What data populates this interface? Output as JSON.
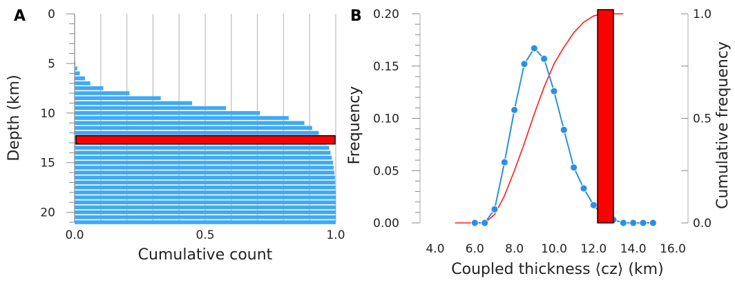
{
  "chart_data": [
    {
      "panel": "A",
      "type": "bar",
      "orientation": "horizontal",
      "title": "",
      "xlabel": "Cumulative count",
      "ylabel": "Depth (km)",
      "xlim": [
        0.0,
        1.0
      ],
      "ylim": [
        0,
        21
      ],
      "y_inverted": true,
      "xticks": [
        "0.0",
        "0.5",
        "1.0"
      ],
      "yticks": [
        "0",
        "5",
        "10",
        "15",
        "20"
      ],
      "grid": "vertical",
      "bar_color": "#3fa9f5",
      "highlight_color": "#ff0000",
      "depth": [
        5.0,
        5.5,
        6.0,
        6.5,
        7.0,
        7.5,
        8.0,
        8.5,
        9.0,
        9.5,
        10.0,
        10.5,
        11.0,
        11.5,
        12.0,
        12.5,
        13.0,
        13.5,
        14.0,
        14.5,
        15.0,
        15.5,
        16.0,
        16.5,
        17.0,
        17.5,
        18.0,
        18.5,
        19.0,
        19.5,
        20.0,
        20.5,
        21.0
      ],
      "values": [
        0.003,
        0.01,
        0.02,
        0.04,
        0.06,
        0.11,
        0.21,
        0.33,
        0.45,
        0.58,
        0.71,
        0.82,
        0.88,
        0.91,
        0.935,
        0.95,
        0.965,
        0.975,
        0.98,
        0.985,
        0.99,
        0.992,
        0.995,
        0.997,
        0.998,
        0.999,
        1.0,
        1.0,
        1.0,
        1.0,
        1.0,
        1.0,
        1.0
      ],
      "highlight": {
        "depth": 12.7,
        "value": 1.0
      }
    },
    {
      "panel": "B",
      "type": "line",
      "title": "",
      "xlabel": "Coupled thickness ⟨cz⟩ (km)",
      "ylabel": "Frequency",
      "y2label": "Cumulative frequency",
      "xlim": [
        4.0,
        16.0
      ],
      "ylim": [
        0.0,
        0.2
      ],
      "y2lim": [
        0.0,
        1.0
      ],
      "xticks": [
        "4.0",
        "6.0",
        "8.0",
        "10.0",
        "12.0",
        "14.0",
        "16.0"
      ],
      "yticks": [
        "0.00",
        "0.05",
        "0.10",
        "0.15",
        "0.20"
      ],
      "y2ticks": [
        "0.0",
        "0.5",
        "1.0"
      ],
      "series": [
        {
          "kind": "frequency",
          "color": "#2a8fe0",
          "x": [
            6.0,
            6.5,
            7.0,
            7.5,
            8.0,
            8.5,
            9.0,
            9.5,
            10.0,
            10.5,
            11.0,
            11.5,
            12.0,
            12.5,
            13.0,
            13.5,
            14.0,
            14.5,
            15.0
          ],
          "y": [
            0.0,
            0.0,
            0.013,
            0.058,
            0.108,
            0.152,
            0.167,
            0.157,
            0.126,
            0.089,
            0.053,
            0.033,
            0.017,
            0.006,
            0.003,
            0.0,
            0.0,
            0.0,
            0.0
          ]
        },
        {
          "kind": "cumulative",
          "axis": "y2",
          "color": "#ff1a1a",
          "x": [
            5.0,
            6.5,
            7.0,
            7.5,
            8.0,
            8.5,
            9.0,
            9.5,
            10.0,
            10.5,
            11.0,
            11.5,
            12.0,
            12.5,
            13.0,
            13.5
          ],
          "y": [
            0.0,
            0.0,
            0.04,
            0.13,
            0.25,
            0.38,
            0.52,
            0.65,
            0.76,
            0.84,
            0.91,
            0.96,
            0.99,
            1.0,
            1.0,
            1.0
          ]
        }
      ],
      "highlight": {
        "x_start": 12.2,
        "x_end": 13.0,
        "color": "#ff0000"
      }
    }
  ],
  "panels": {
    "a_letter": "A",
    "b_letter": "B"
  },
  "colors": {
    "bar": "#3fa9f5",
    "highlight": "#ff0000",
    "cumulative_line": "#ff1a1a",
    "frequency_line": "#2a8fe0",
    "grid": "#c8c8c8",
    "axis": "#999999"
  }
}
